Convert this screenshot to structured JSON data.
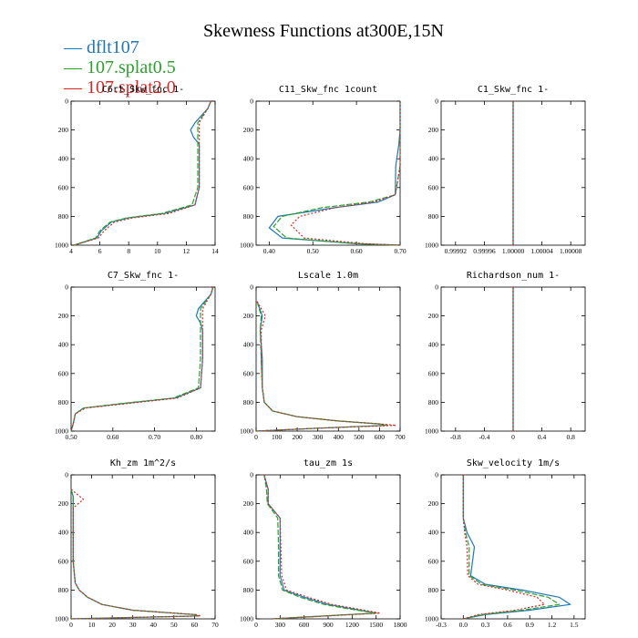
{
  "figure_title": "Skewness Functions at300E,15N",
  "legend": [
    {
      "label": "dflt107",
      "color": "#1f77b4"
    },
    {
      "label": "107.splat0.5",
      "color": "#2ca02c"
    },
    {
      "label": "107.splat2.0",
      "color": "#d62728"
    }
  ],
  "chart_data": [
    {
      "type": "line",
      "title": "C6rt_Skw_fnc 1-",
      "xticks": [
        "4",
        "6",
        "8",
        "10",
        "12",
        "14"
      ],
      "xlim": [
        4,
        14
      ],
      "yticks": [
        "0",
        "200",
        "400",
        "600",
        "800",
        "1000"
      ],
      "ylim": [
        0,
        1000
      ],
      "y_inverted": true,
      "series": [
        {
          "name": "dflt107",
          "x": [
            13.7,
            13.5,
            12.6,
            12.3,
            12.5,
            12.9,
            12.9,
            12.9,
            12.6,
            10.5,
            8.0,
            6.8,
            6.1,
            5.8,
            4.2
          ],
          "y": [
            0,
            50,
            150,
            200,
            250,
            300,
            400,
            600,
            720,
            780,
            810,
            840,
            900,
            950,
            1000
          ]
        },
        {
          "name": "107.splat0.5",
          "x": [
            13.7,
            13.5,
            12.8,
            12.8,
            12.8,
            12.8,
            12.8,
            12.8,
            12.4,
            10.3,
            7.9,
            6.7,
            6.0,
            5.7,
            4.2
          ],
          "y": [
            0,
            50,
            150,
            200,
            250,
            300,
            400,
            600,
            720,
            780,
            810,
            840,
            900,
            950,
            1000
          ]
        },
        {
          "name": "107.splat2.0",
          "x": [
            13.7,
            13.5,
            12.9,
            12.9,
            12.9,
            12.9,
            12.9,
            12.9,
            12.6,
            10.8,
            8.3,
            7.0,
            6.3,
            5.9,
            4.2
          ],
          "y": [
            0,
            50,
            150,
            200,
            250,
            300,
            400,
            600,
            720,
            780,
            810,
            840,
            900,
            950,
            1000
          ]
        }
      ]
    },
    {
      "type": "line",
      "title": "C11_Skw_fnc 1count",
      "xticks": [
        "0.40",
        "0.50",
        "0.60",
        "0.70"
      ],
      "xlim": [
        0.37,
        0.7
      ],
      "yticks": [
        "0",
        "200",
        "400",
        "600",
        "800",
        "1000"
      ],
      "ylim": [
        0,
        1000
      ],
      "y_inverted": true,
      "series": [
        {
          "name": "dflt107",
          "x": [
            0.7,
            0.7,
            0.697,
            0.69,
            0.689,
            0.65,
            0.55,
            0.42,
            0.4,
            0.43,
            0.6,
            0.7
          ],
          "y": [
            0,
            200,
            300,
            450,
            650,
            700,
            740,
            800,
            880,
            950,
            990,
            1000
          ]
        },
        {
          "name": "107.splat0.5",
          "x": [
            0.7,
            0.7,
            0.7,
            0.7,
            0.689,
            0.63,
            0.52,
            0.43,
            0.41,
            0.44,
            0.6,
            0.7
          ],
          "y": [
            0,
            200,
            300,
            450,
            650,
            700,
            740,
            800,
            870,
            950,
            990,
            1000
          ]
        },
        {
          "name": "107.splat2.0",
          "x": [
            0.7,
            0.7,
            0.7,
            0.7,
            0.689,
            0.64,
            0.55,
            0.47,
            0.45,
            0.48,
            0.62,
            0.7
          ],
          "y": [
            0,
            200,
            300,
            450,
            650,
            700,
            740,
            800,
            860,
            950,
            990,
            1000
          ]
        }
      ]
    },
    {
      "type": "line",
      "title": "C1_Skw_fnc 1-",
      "xticks": [
        "0.99992",
        "0.99996",
        "1.00000",
        "1.00004",
        "1.00008"
      ],
      "xlim": [
        0.9999,
        1.0001
      ],
      "yticks": [
        "0",
        "200",
        "400",
        "600",
        "800",
        "1000"
      ],
      "ylim": [
        0,
        1000
      ],
      "y_inverted": true,
      "series": [
        {
          "name": "dflt107",
          "x": [
            1.0,
            1.0
          ],
          "y": [
            0,
            1000
          ]
        },
        {
          "name": "107.splat0.5",
          "x": [
            1.0,
            1.0
          ],
          "y": [
            0,
            1000
          ]
        },
        {
          "name": "107.splat2.0",
          "x": [
            1.0,
            1.0
          ],
          "y": [
            0,
            1000
          ]
        }
      ]
    },
    {
      "type": "line",
      "title": "C7_Skw_fnc 1-",
      "xticks": [
        "0.50",
        "0.60",
        "0.70",
        "0.80"
      ],
      "xlim": [
        0.5,
        0.845
      ],
      "yticks": [
        "0",
        "200",
        "400",
        "600",
        "800",
        "1000"
      ],
      "ylim": [
        0,
        1000
      ],
      "y_inverted": true,
      "series": [
        {
          "name": "dflt107",
          "x": [
            0.84,
            0.835,
            0.805,
            0.8,
            0.81,
            0.815,
            0.815,
            0.81,
            0.75,
            0.62,
            0.53,
            0.51,
            0.505,
            0.5
          ],
          "y": [
            0,
            50,
            150,
            200,
            250,
            300,
            500,
            700,
            770,
            810,
            840,
            880,
            950,
            1000
          ]
        },
        {
          "name": "107.splat0.5",
          "x": [
            0.84,
            0.835,
            0.81,
            0.81,
            0.81,
            0.81,
            0.81,
            0.805,
            0.745,
            0.615,
            0.53,
            0.51,
            0.505,
            0.5
          ],
          "y": [
            0,
            50,
            150,
            200,
            250,
            300,
            500,
            700,
            770,
            810,
            840,
            880,
            950,
            1000
          ]
        },
        {
          "name": "107.splat2.0",
          "x": [
            0.84,
            0.835,
            0.815,
            0.815,
            0.815,
            0.815,
            0.815,
            0.81,
            0.755,
            0.63,
            0.535,
            0.51,
            0.505,
            0.5
          ],
          "y": [
            0,
            50,
            150,
            200,
            250,
            300,
            500,
            700,
            770,
            810,
            840,
            880,
            950,
            1000
          ]
        }
      ]
    },
    {
      "type": "line",
      "title": "Lscale 1.0m",
      "xticks": [
        "0",
        "100",
        "200",
        "300",
        "400",
        "500",
        "600",
        "700"
      ],
      "xlim": [
        0,
        700
      ],
      "yticks": [
        "0",
        "200",
        "400",
        "600",
        "800",
        "1000"
      ],
      "ylim": [
        0,
        1000
      ],
      "y_inverted": true,
      "series": [
        {
          "name": "dflt107",
          "x": [
            5,
            30,
            20,
            30,
            30,
            40,
            80,
            200,
            400,
            600,
            630,
            300,
            0
          ],
          "y": [
            100,
            200,
            300,
            500,
            700,
            800,
            860,
            900,
            930,
            950,
            960,
            980,
            1000
          ]
        },
        {
          "name": "107.splat0.5",
          "x": [
            5,
            25,
            20,
            25,
            30,
            40,
            80,
            200,
            400,
            600,
            640,
            300,
            0
          ],
          "y": [
            100,
            200,
            300,
            500,
            700,
            800,
            860,
            900,
            930,
            950,
            960,
            980,
            1000
          ]
        },
        {
          "name": "107.splat2.0",
          "x": [
            5,
            45,
            25,
            25,
            30,
            40,
            80,
            200,
            400,
            600,
            680,
            300,
            0
          ],
          "y": [
            100,
            200,
            300,
            500,
            700,
            800,
            860,
            900,
            930,
            950,
            960,
            980,
            1000
          ]
        }
      ]
    },
    {
      "type": "line",
      "title": "Richardson_num 1-",
      "xticks": [
        "-0.8",
        "-0.4",
        "0",
        "0.4",
        "0.8"
      ],
      "xlim": [
        -1,
        1
      ],
      "yticks": [
        "0",
        "200",
        "400",
        "600",
        "800",
        "1000"
      ],
      "ylim": [
        0,
        1000
      ],
      "y_inverted": true,
      "series": [
        {
          "name": "dflt107",
          "x": [
            0,
            0
          ],
          "y": [
            0,
            1000
          ]
        },
        {
          "name": "107.splat0.5",
          "x": [
            0,
            0
          ],
          "y": [
            0,
            1000
          ]
        },
        {
          "name": "107.splat2.0",
          "x": [
            0,
            0
          ],
          "y": [
            0,
            1000
          ]
        }
      ]
    },
    {
      "type": "line",
      "title": "Kh_zm 1m^2/s",
      "xticks": [
        "0",
        "10",
        "20",
        "30",
        "40",
        "50",
        "60",
        "70"
      ],
      "xlim": [
        0,
        70
      ],
      "yticks": [
        "0",
        "200",
        "400",
        "600",
        "800",
        "1000"
      ],
      "ylim": [
        0,
        1000
      ],
      "y_inverted": true,
      "series": [
        {
          "name": "dflt107",
          "x": [
            0,
            1,
            1,
            1,
            1,
            2,
            4,
            8,
            15,
            30,
            50,
            60,
            62,
            0
          ],
          "y": [
            100,
            150,
            200,
            400,
            600,
            750,
            800,
            850,
            900,
            940,
            960,
            970,
            980,
            1000
          ]
        },
        {
          "name": "107.splat0.5",
          "x": [
            0,
            1,
            1,
            1,
            1,
            2,
            4,
            8,
            15,
            30,
            50,
            60,
            62,
            0
          ],
          "y": [
            100,
            150,
            200,
            400,
            600,
            750,
            800,
            850,
            900,
            940,
            960,
            970,
            980,
            1000
          ]
        },
        {
          "name": "107.splat2.0",
          "x": [
            0,
            6,
            1,
            1,
            1,
            2,
            4,
            8,
            15,
            30,
            50,
            61,
            63,
            0
          ],
          "y": [
            100,
            170,
            230,
            400,
            600,
            750,
            800,
            850,
            900,
            940,
            960,
            970,
            980,
            1000
          ]
        }
      ]
    },
    {
      "type": "line",
      "title": "tau_zm 1s",
      "xticks": [
        "0",
        "300",
        "600",
        "900",
        "1200",
        "1500",
        "1800"
      ],
      "xlim": [
        0,
        1800
      ],
      "yticks": [
        "0",
        "200",
        "400",
        "600",
        "800",
        "1000"
      ],
      "ylim": [
        0,
        1000
      ],
      "y_inverted": true,
      "series": [
        {
          "name": "dflt107",
          "x": [
            100,
            150,
            150,
            300,
            300,
            300,
            350,
            600,
            900,
            1200,
            1500,
            200
          ],
          "y": [
            0,
            100,
            200,
            300,
            500,
            700,
            800,
            850,
            900,
            930,
            960,
            1000
          ]
        },
        {
          "name": "107.splat0.5",
          "x": [
            100,
            130,
            140,
            270,
            280,
            280,
            330,
            550,
            850,
            1150,
            1500,
            200
          ],
          "y": [
            0,
            100,
            200,
            300,
            500,
            700,
            800,
            850,
            900,
            930,
            960,
            1000
          ]
        },
        {
          "name": "107.splat2.0",
          "x": [
            100,
            150,
            150,
            300,
            310,
            320,
            380,
            650,
            950,
            1250,
            1550,
            200
          ],
          "y": [
            0,
            100,
            200,
            300,
            500,
            700,
            800,
            850,
            900,
            930,
            960,
            1000
          ]
        }
      ]
    },
    {
      "type": "line",
      "title": "Skw_velocity 1m/s",
      "xticks": [
        "-0.3",
        "0.0",
        "0.3",
        "0.6",
        "0.9",
        "1.2",
        "1.5"
      ],
      "xlim": [
        -0.3,
        1.65
      ],
      "yticks": [
        "0",
        "200",
        "400",
        "600",
        "800",
        "1000"
      ],
      "ylim": [
        0,
        1000
      ],
      "y_inverted": true,
      "series": [
        {
          "name": "dflt107",
          "x": [
            0,
            0,
            0.05,
            0.15,
            0.1,
            0.3,
            0.8,
            1.3,
            1.45,
            0.9,
            0.3,
            0
          ],
          "y": [
            0,
            300,
            400,
            500,
            700,
            760,
            800,
            850,
            900,
            940,
            970,
            1000
          ]
        },
        {
          "name": "107.splat0.5",
          "x": [
            0,
            0,
            0.03,
            0.08,
            0.08,
            0.25,
            0.7,
            1.15,
            1.3,
            0.8,
            0.25,
            0
          ],
          "y": [
            0,
            300,
            400,
            500,
            700,
            760,
            800,
            850,
            900,
            940,
            970,
            1000
          ]
        },
        {
          "name": "107.splat2.0",
          "x": [
            0,
            0,
            0.02,
            0.05,
            0.06,
            0.2,
            0.6,
            1.0,
            1.1,
            0.7,
            0.2,
            0
          ],
          "y": [
            0,
            300,
            400,
            500,
            700,
            760,
            800,
            850,
            900,
            940,
            970,
            1000
          ]
        }
      ]
    }
  ]
}
